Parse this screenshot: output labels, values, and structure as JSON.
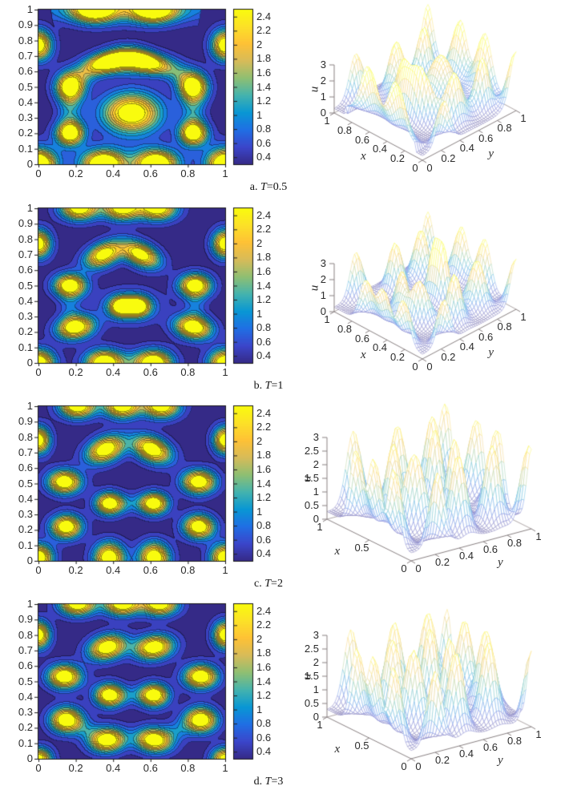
{
  "figure": {
    "background": "#ffffff",
    "colormap_anchors": [
      "#352a87",
      "#3b46cb",
      "#206fe4",
      "#0997d4",
      "#44b3ae",
      "#8ebf73",
      "#d7bb59",
      "#fec136",
      "#fce128",
      "#f9fb0e"
    ],
    "contour_axes": {
      "xtick_labels": [
        "0",
        "0.2",
        "0.4",
        "0.6",
        "0.8",
        "1"
      ],
      "ytick_labels": [
        "0",
        "0.1",
        "0.2",
        "0.3",
        "0.4",
        "0.5",
        "0.6",
        "0.7",
        "0.8",
        "0.9",
        "1"
      ],
      "xlim": [
        0,
        1
      ],
      "ylim": [
        0,
        1
      ]
    },
    "colorbar": {
      "tick_labels": [
        "0.4",
        "0.6",
        "0.8",
        "1",
        "1.2",
        "1.4",
        "1.6",
        "1.8",
        "2",
        "2.2",
        "2.4"
      ],
      "range": [
        0.3,
        2.5
      ]
    },
    "levels": {
      "min": 0.4,
      "step": 0.2,
      "max": 2.4
    },
    "surface_axis_letters": {
      "x": "x",
      "y": "y",
      "z": "u"
    }
  },
  "chart_data": [
    {
      "panel": "a",
      "type": "contour+surface3d",
      "caption": {
        "index": "a.",
        "var": "T",
        "value": "=0.5"
      },
      "field_base": 0.28,
      "bumps": [
        [
          0.0,
          0.0,
          2.9,
          0.06,
          0.06,
          0
        ],
        [
          0.35,
          0.0,
          2.9,
          0.07,
          0.055,
          0
        ],
        [
          0.63,
          0.0,
          2.9,
          0.07,
          0.055,
          0
        ],
        [
          1.0,
          0.0,
          2.9,
          0.06,
          0.06,
          0
        ],
        [
          0.17,
          0.2,
          2.75,
          0.05,
          0.052,
          0
        ],
        [
          0.83,
          0.2,
          2.75,
          0.05,
          0.052,
          0
        ],
        [
          0.5,
          0.33,
          2.7,
          0.105,
          0.088,
          0
        ],
        [
          0.17,
          0.5,
          2.6,
          0.052,
          0.062,
          0
        ],
        [
          0.83,
          0.5,
          2.6,
          0.052,
          0.062,
          0
        ],
        [
          0.38,
          0.665,
          2.55,
          0.085,
          0.045,
          22
        ],
        [
          0.575,
          0.665,
          2.55,
          0.085,
          0.045,
          -22
        ],
        [
          0.0,
          0.77,
          2.7,
          0.048,
          0.065,
          0
        ],
        [
          1.0,
          0.77,
          2.7,
          0.048,
          0.065,
          0
        ],
        [
          0.3,
          1.0,
          2.65,
          0.075,
          0.055,
          0
        ],
        [
          0.62,
          1.0,
          2.65,
          0.075,
          0.055,
          0
        ],
        [
          0.47,
          1.0,
          1.25,
          0.3,
          0.06,
          0
        ],
        [
          0.48,
          0.645,
          1.15,
          0.105,
          0.048,
          0
        ],
        [
          0.17,
          0.35,
          0.75,
          0.045,
          0.12,
          0
        ],
        [
          0.83,
          0.35,
          0.75,
          0.045,
          0.12,
          0
        ],
        [
          0.255,
          0.595,
          0.7,
          0.075,
          0.05,
          45
        ],
        [
          0.745,
          0.595,
          0.7,
          0.075,
          0.05,
          -45
        ],
        [
          0.35,
          0.02,
          0.6,
          0.11,
          0.08,
          0
        ],
        [
          0.63,
          0.02,
          0.6,
          0.11,
          0.08,
          0
        ],
        [
          0.0,
          0.02,
          0.5,
          0.09,
          0.09,
          0
        ],
        [
          1.0,
          0.02,
          0.5,
          0.09,
          0.09,
          0
        ]
      ],
      "surface": {
        "xticks": [
          "1",
          "0.8",
          "0.6",
          "0.4",
          "0.2",
          "0"
        ],
        "yticks": [
          "0",
          "0.2",
          "0.4",
          "0.6",
          "0.8",
          "1"
        ],
        "zticks": [
          "0",
          "1",
          "2",
          "3"
        ],
        "zlim": [
          0,
          3
        ],
        "view": "A"
      }
    },
    {
      "panel": "b",
      "type": "contour+surface3d",
      "caption": {
        "index": "b.",
        "var": "T",
        "value": "=1"
      },
      "field_base": 0.28,
      "bumps": [
        [
          0.0,
          0.0,
          2.85,
          0.058,
          0.058,
          0
        ],
        [
          0.35,
          0.0,
          2.85,
          0.065,
          0.055,
          0
        ],
        [
          0.62,
          0.0,
          2.85,
          0.065,
          0.055,
          0
        ],
        [
          1.0,
          0.0,
          2.85,
          0.058,
          0.058,
          0
        ],
        [
          0.2,
          0.23,
          2.75,
          0.068,
          0.05,
          15
        ],
        [
          0.83,
          0.23,
          2.75,
          0.068,
          0.05,
          -15
        ],
        [
          0.445,
          0.365,
          2.5,
          0.042,
          0.042,
          0
        ],
        [
          0.535,
          0.365,
          2.5,
          0.042,
          0.042,
          0
        ],
        [
          0.49,
          0.365,
          1.0,
          0.1,
          0.068,
          0
        ],
        [
          0.17,
          0.5,
          2.75,
          0.058,
          0.05,
          0
        ],
        [
          0.84,
          0.5,
          2.75,
          0.058,
          0.05,
          0
        ],
        [
          0.35,
          0.7,
          2.6,
          0.075,
          0.048,
          35
        ],
        [
          0.55,
          0.7,
          2.6,
          0.075,
          0.048,
          -35
        ],
        [
          0.0,
          0.77,
          2.7,
          0.045,
          0.06,
          0
        ],
        [
          1.0,
          0.77,
          2.7,
          0.045,
          0.06,
          0
        ],
        [
          0.22,
          1.0,
          2.7,
          0.068,
          0.052,
          0
        ],
        [
          0.45,
          1.0,
          2.7,
          0.068,
          0.052,
          0
        ],
        [
          0.64,
          1.0,
          2.7,
          0.068,
          0.052,
          0
        ],
        [
          0.17,
          0.365,
          0.45,
          0.04,
          0.1,
          0
        ],
        [
          0.84,
          0.365,
          0.45,
          0.04,
          0.1,
          0
        ],
        [
          0.485,
          0.01,
          0.5,
          0.1,
          0.05,
          0
        ]
      ],
      "surface": {
        "xticks": [
          "1",
          "0.8",
          "0.6",
          "0.4",
          "0.2",
          "0"
        ],
        "yticks": [
          "0",
          "0.2",
          "0.4",
          "0.6",
          "0.8",
          "1"
        ],
        "zticks": [
          "0",
          "1",
          "2",
          "3"
        ],
        "zlim": [
          0,
          3
        ],
        "view": "A"
      }
    },
    {
      "panel": "c",
      "type": "contour+surface3d",
      "caption": {
        "index": "c.",
        "var": "T",
        "value": "=2"
      },
      "field_base": 0.28,
      "bumps": [
        [
          0.0,
          0.02,
          2.8,
          0.052,
          0.058,
          0
        ],
        [
          0.38,
          0.02,
          2.8,
          0.055,
          0.065,
          0
        ],
        [
          0.62,
          0.02,
          2.8,
          0.055,
          0.065,
          0
        ],
        [
          1.0,
          0.02,
          2.8,
          0.052,
          0.058,
          0
        ],
        [
          0.15,
          0.22,
          2.8,
          0.056,
          0.052,
          10
        ],
        [
          0.86,
          0.22,
          2.8,
          0.056,
          0.052,
          -10
        ],
        [
          0.38,
          0.37,
          2.7,
          0.05,
          0.048,
          0
        ],
        [
          0.62,
          0.37,
          2.7,
          0.05,
          0.048,
          0
        ],
        [
          0.5,
          0.37,
          0.45,
          0.085,
          0.045,
          0
        ],
        [
          0.14,
          0.51,
          2.8,
          0.06,
          0.052,
          0
        ],
        [
          0.86,
          0.51,
          2.8,
          0.06,
          0.052,
          0
        ],
        [
          0.36,
          0.72,
          2.75,
          0.075,
          0.052,
          35
        ],
        [
          0.61,
          0.72,
          2.75,
          0.075,
          0.052,
          -35
        ],
        [
          0.0,
          0.78,
          2.7,
          0.042,
          0.058,
          0
        ],
        [
          1.0,
          0.78,
          2.7,
          0.042,
          0.058,
          0
        ],
        [
          0.21,
          1.0,
          2.75,
          0.065,
          0.052,
          0
        ],
        [
          0.45,
          1.0,
          2.75,
          0.065,
          0.052,
          0
        ],
        [
          0.66,
          1.0,
          2.75,
          0.065,
          0.052,
          0
        ]
      ],
      "surface": {
        "xticks": [
          "1",
          "0.5",
          "0"
        ],
        "yticks": [
          "0",
          "0.2",
          "0.4",
          "0.6",
          "0.8",
          "1"
        ],
        "zticks": [
          "0",
          "0.5",
          "1",
          "1.5",
          "2",
          "2.5",
          "3"
        ],
        "zlim": [
          0,
          3
        ],
        "view": "B"
      }
    },
    {
      "panel": "d",
      "type": "contour+surface3d",
      "caption": {
        "index": "d.",
        "var": "T",
        "value": "=3"
      },
      "field_base": 0.28,
      "bumps": [
        [
          0.0,
          0.0,
          2.5,
          0.048,
          0.048,
          0
        ],
        [
          1.0,
          0.0,
          2.5,
          0.048,
          0.048,
          0
        ],
        [
          0.37,
          0.12,
          2.8,
          0.065,
          0.052,
          10
        ],
        [
          0.62,
          0.12,
          2.8,
          0.065,
          0.052,
          -10
        ],
        [
          0.15,
          0.25,
          2.85,
          0.058,
          0.055,
          0
        ],
        [
          0.87,
          0.25,
          2.85,
          0.058,
          0.055,
          0
        ],
        [
          0.38,
          0.41,
          2.75,
          0.052,
          0.05,
          0
        ],
        [
          0.62,
          0.41,
          2.75,
          0.052,
          0.05,
          0
        ],
        [
          0.5,
          0.41,
          0.4,
          0.08,
          0.045,
          0
        ],
        [
          0.14,
          0.53,
          2.85,
          0.06,
          0.052,
          0
        ],
        [
          0.87,
          0.53,
          2.85,
          0.06,
          0.052,
          0
        ],
        [
          0.37,
          0.72,
          2.8,
          0.07,
          0.052,
          25
        ],
        [
          0.62,
          0.72,
          2.8,
          0.07,
          0.052,
          15
        ],
        [
          0.0,
          0.8,
          2.7,
          0.042,
          0.058,
          0
        ],
        [
          1.0,
          0.8,
          2.7,
          0.042,
          0.058,
          0
        ],
        [
          0.21,
          1.0,
          2.75,
          0.065,
          0.05,
          0
        ],
        [
          0.45,
          1.0,
          2.75,
          0.065,
          0.05,
          0
        ],
        [
          0.65,
          1.0,
          2.75,
          0.065,
          0.05,
          0
        ],
        [
          0.26,
          0.185,
          0.45,
          0.055,
          0.045,
          -30
        ],
        [
          0.745,
          0.185,
          0.45,
          0.055,
          0.045,
          30
        ]
      ],
      "surface": {
        "xticks": [
          "1",
          "0.5",
          "0"
        ],
        "yticks": [
          "0",
          "0.2",
          "0.4",
          "0.6",
          "0.8",
          "1"
        ],
        "zticks": [
          "0",
          "0.5",
          "1",
          "1.5",
          "2",
          "2.5",
          "3"
        ],
        "zlim": [
          0,
          3
        ],
        "view": "B"
      }
    }
  ]
}
